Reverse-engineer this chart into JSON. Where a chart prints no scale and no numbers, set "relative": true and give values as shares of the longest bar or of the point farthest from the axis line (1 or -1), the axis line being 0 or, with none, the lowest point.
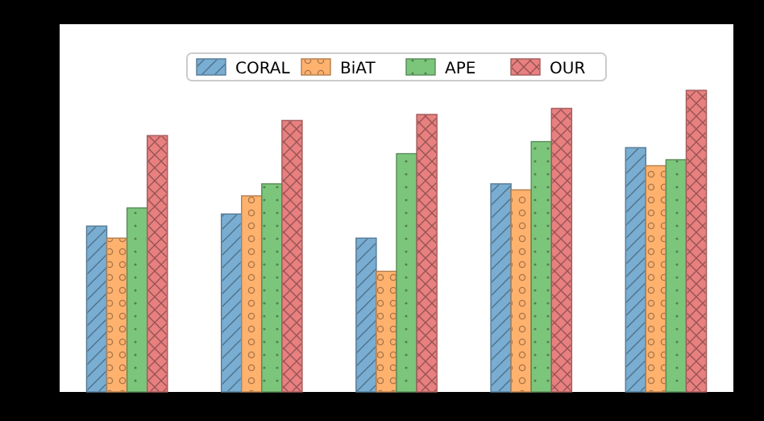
{
  "chart_data": {
    "type": "bar",
    "relative": true,
    "categories": [
      null,
      null,
      null,
      null,
      null
    ],
    "legend": "top",
    "series": [
      {
        "name": "CORAL",
        "color": "#79add2",
        "values": [
          0.55,
          0.59,
          0.51,
          0.69,
          0.81
        ]
      },
      {
        "name": "BiAT",
        "color": "#ffb26e",
        "values": [
          0.51,
          0.65,
          0.4,
          0.67,
          0.75
        ]
      },
      {
        "name": "APE",
        "color": "#7cc67c",
        "values": [
          0.61,
          0.69,
          0.79,
          0.83,
          0.77
        ]
      },
      {
        "name": "OUR",
        "color": "#e88080",
        "values": [
          0.85,
          0.9,
          0.92,
          0.94,
          1.0
        ]
      }
    ]
  }
}
